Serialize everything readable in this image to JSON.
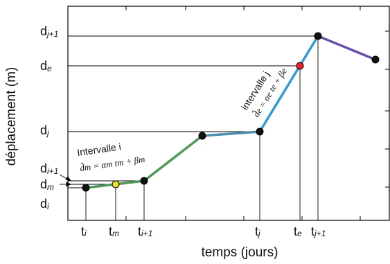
{
  "diagram": {
    "colors": {
      "frame": "#000000",
      "ref_lines": "#000000",
      "seg_green": "#4c9a57",
      "seg_teal": "#4a8fb0",
      "seg_blue": "#3399dd",
      "seg_purple": "#6a4fa8",
      "point_black": "#111111",
      "point_yellow": "#f0e020",
      "point_red": "#ee2020"
    },
    "axes": {
      "y_label": "déplacement (m)",
      "x_label": "temps (jours)"
    },
    "y_labels": [
      {
        "id": "dj1",
        "base": "d",
        "sub": "j+1"
      },
      {
        "id": "de",
        "base": "d",
        "sub": "e"
      },
      {
        "id": "dj",
        "base": "d",
        "sub": "j"
      },
      {
        "id": "di1",
        "base": "d",
        "sub": "i+1"
      },
      {
        "id": "dm",
        "base": "d",
        "sub": "m"
      },
      {
        "id": "di",
        "base": "d",
        "sub": "i"
      }
    ],
    "x_labels": [
      {
        "id": "ti",
        "base": "t",
        "sub": "i"
      },
      {
        "id": "tm",
        "base": "t",
        "sub": "m"
      },
      {
        "id": "ti1",
        "base": "t",
        "sub": "i+1"
      },
      {
        "id": "tj",
        "base": "t",
        "sub": "j"
      },
      {
        "id": "te",
        "base": "t",
        "sub": "e"
      },
      {
        "id": "tj1",
        "base": "t",
        "sub": "j+1"
      }
    ],
    "annotations": {
      "interval_i_title": "Intervalle i",
      "interval_i_eq": "d̂m = αm tm + βm",
      "interval_j_title": "intervalle j",
      "interval_j_eq": "d̂e = αe te + βe"
    }
  }
}
